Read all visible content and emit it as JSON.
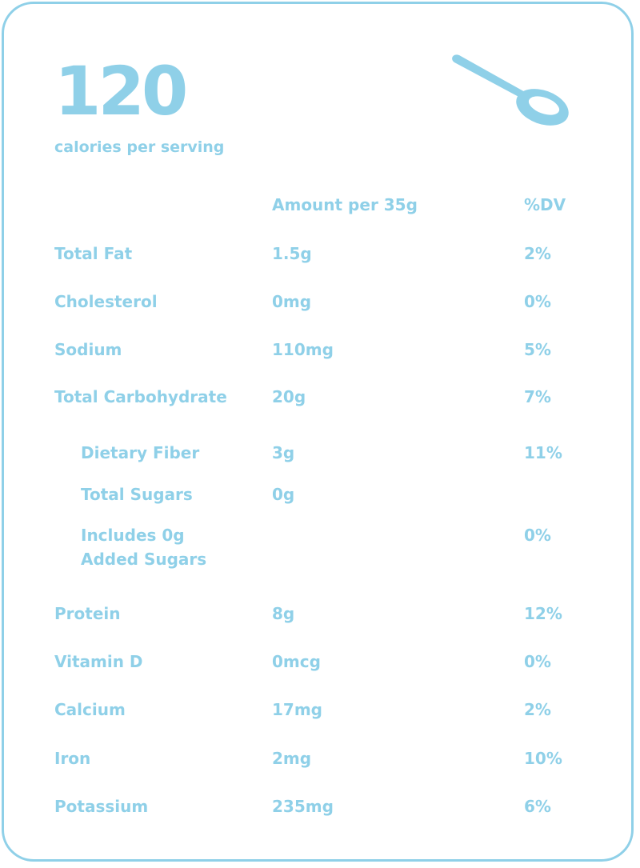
{
  "colors": {
    "accent": "#8fd0e8",
    "background": "#ffffff"
  },
  "header": {
    "calories": "120",
    "calories_label": "calories per serving",
    "icon": "spoon-icon"
  },
  "table": {
    "headers": {
      "amount": "Amount per 35g",
      "dv": "%DV"
    },
    "rows": [
      {
        "name": "Total Fat",
        "amount": "1.5g",
        "dv": "2%"
      },
      {
        "name": "Cholesterol",
        "amount": "0mg",
        "dv": "0%"
      },
      {
        "name": "Sodium",
        "amount": "110mg",
        "dv": "5%"
      },
      {
        "name": "Total Carbohydrate",
        "amount": "20g",
        "dv": "7%"
      },
      {
        "name": "Dietary Fiber",
        "amount": "3g",
        "dv": "11%"
      },
      {
        "name": "Total Sugars",
        "amount": "0g",
        "dv": ""
      },
      {
        "name_line1": "Includes 0g",
        "name_line2": "Added Sugars",
        "amount": "",
        "dv": "0%"
      },
      {
        "name": "Protein",
        "amount": "8g",
        "dv": "12%"
      },
      {
        "name": "Vitamin D",
        "amount": "0mcg",
        "dv": "0%"
      },
      {
        "name": "Calcium",
        "amount": "17mg",
        "dv": "2%"
      },
      {
        "name": "Iron",
        "amount": "2mg",
        "dv": "10%"
      },
      {
        "name": "Potassium",
        "amount": "235mg",
        "dv": "6%"
      }
    ]
  }
}
